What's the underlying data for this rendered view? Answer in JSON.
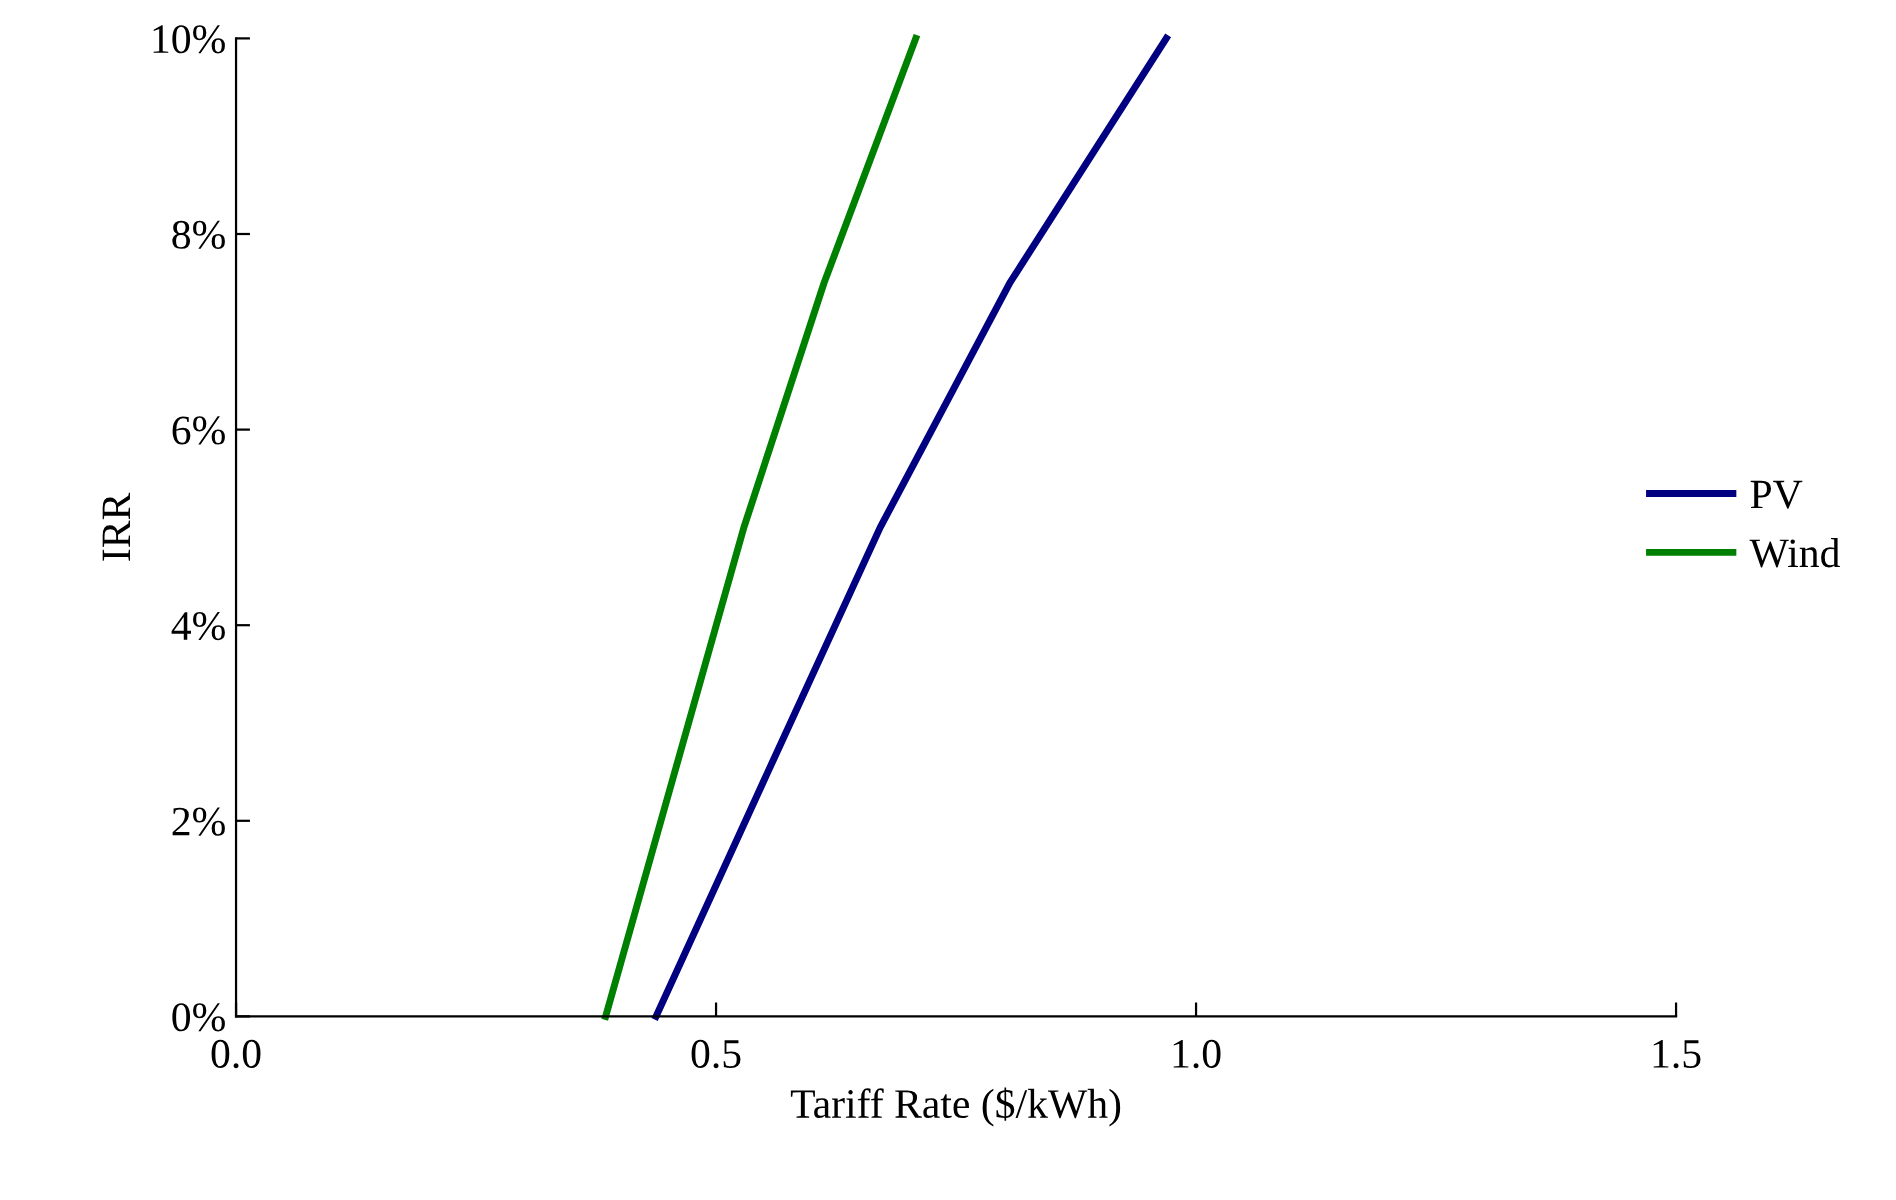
{
  "chart_data": {
    "type": "line",
    "xlabel": "Tariff Rate ($/kWh)",
    "ylabel": "IRR",
    "series": [
      {
        "name": "PV",
        "color": "#000080",
        "x": [
          0.4375,
          0.554,
          0.671,
          0.806,
          0.969
        ],
        "values": [
          0,
          2.5,
          5,
          7.5,
          10
        ]
      },
      {
        "name": "Wind",
        "color": "#008000",
        "x": [
          0.385,
          0.457,
          0.529,
          0.6125,
          0.708
        ],
        "values": [
          0,
          2.5,
          5,
          7.5,
          10
        ]
      }
    ],
    "xlim": [
      0,
      1.5
    ],
    "xticks": [
      {
        "value": 0,
        "label": "0.0"
      },
      0.5,
      {
        "value": 1,
        "label": "1.0"
      },
      1.5
    ],
    "ylim": [
      0,
      10
    ],
    "yticks": [
      {
        "value": 0,
        "label": "0%"
      },
      {
        "value": 2,
        "label": "2%"
      },
      {
        "value": 4,
        "label": "4%"
      },
      {
        "value": 6,
        "label": "6%"
      },
      {
        "value": 8,
        "label": "8%"
      },
      {
        "value": 10,
        "label": "10%"
      }
    ],
    "grid": false,
    "legend": "right",
    "marker": "none",
    "line_style": "solid"
  }
}
